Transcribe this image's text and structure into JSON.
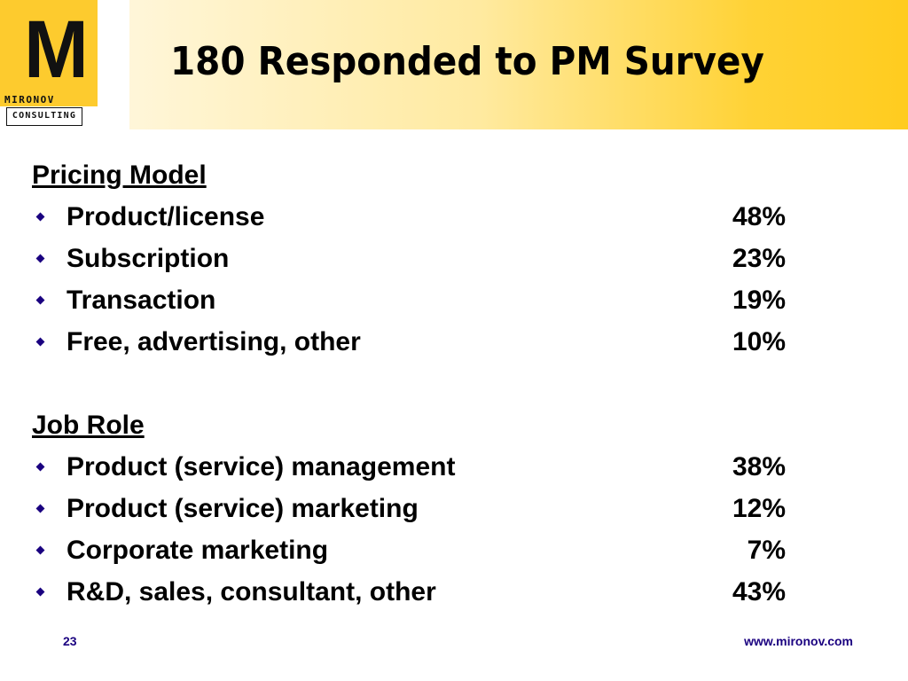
{
  "logo": {
    "letter": "M",
    "line1": "MIRONOV",
    "line2": "CONSULTING"
  },
  "title": "180 Responded to PM Survey",
  "sections": [
    {
      "heading": "Pricing Model",
      "items": [
        {
          "label": "Product/license",
          "value": "48%"
        },
        {
          "label": "Subscription",
          "value": "23%"
        },
        {
          "label": "Transaction",
          "value": "19%"
        },
        {
          "label": "Free, advertising, other",
          "value": "10%"
        }
      ]
    },
    {
      "heading": "Job Role",
      "items": [
        {
          "label": "Product (service) management",
          "value": "38%"
        },
        {
          "label": "Product (service) marketing",
          "value": "12%"
        },
        {
          "label": "Corporate marketing",
          "value": "7%"
        },
        {
          "label": "R&D, sales, consultant, other",
          "value": "43%"
        }
      ]
    }
  ],
  "footer": {
    "page_number": "23",
    "url": "www.mironov.com"
  },
  "colors": {
    "accent_yellow": "#fdcb2e",
    "bullet": "#1a0080",
    "footer_text": "#1a0080"
  }
}
